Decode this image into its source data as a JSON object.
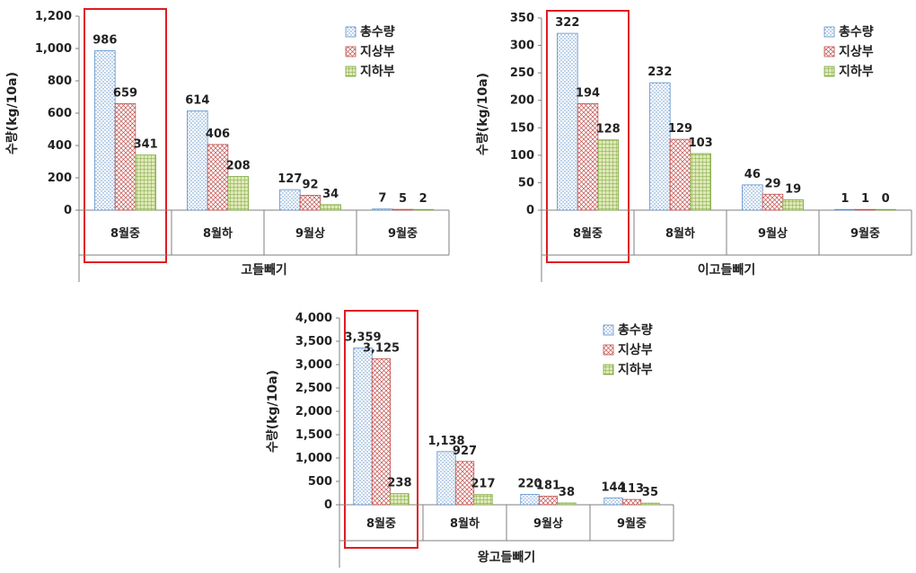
{
  "colors": {
    "total": "#5b8fc9",
    "above": "#c0504d",
    "below": "#7aa63a",
    "highlight": "#e11b22",
    "axis": "#7f7f7f"
  },
  "chart_data": [
    {
      "type": "bar",
      "title": "",
      "xlabel": "고들빼기",
      "ylabel": "수량(kg/10a)",
      "categories": [
        "8월중",
        "8월하",
        "9월상",
        "9월중"
      ],
      "ylim": [
        0,
        1200
      ],
      "yticks": [
        "0",
        "200",
        "400",
        "600",
        "800",
        "1,000",
        "1,200"
      ],
      "ytick_values": [
        0,
        200,
        400,
        600,
        800,
        1000,
        1200
      ],
      "series": [
        {
          "name": "총수량",
          "values": [
            986,
            614,
            127,
            7
          ],
          "labels": [
            "986",
            "614",
            "127",
            "7"
          ]
        },
        {
          "name": "지상부",
          "values": [
            659,
            406,
            92,
            5
          ],
          "labels": [
            "659",
            "406",
            "92",
            "5"
          ]
        },
        {
          "name": "지하부",
          "values": [
            341,
            208,
            34,
            2
          ],
          "labels": [
            "341",
            "208",
            "34",
            "2"
          ]
        }
      ],
      "legend": "top-right",
      "grid": false,
      "highlighted_category": "8월중"
    },
    {
      "type": "bar",
      "title": "",
      "xlabel": "이고들빼기",
      "ylabel": "수량(kg/10a)",
      "categories": [
        "8월중",
        "8월하",
        "9월상",
        "9월중"
      ],
      "ylim": [
        0,
        350
      ],
      "yticks": [
        "0",
        "50",
        "100",
        "150",
        "200",
        "250",
        "300",
        "350"
      ],
      "ytick_values": [
        0,
        50,
        100,
        150,
        200,
        250,
        300,
        350
      ],
      "series": [
        {
          "name": "총수량",
          "values": [
            322,
            232,
            46,
            1
          ],
          "labels": [
            "322",
            "232",
            "46",
            "1"
          ]
        },
        {
          "name": "지상부",
          "values": [
            194,
            129,
            29,
            1
          ],
          "labels": [
            "194",
            "129",
            "29",
            "1"
          ]
        },
        {
          "name": "지하부",
          "values": [
            128,
            103,
            19,
            0
          ],
          "labels": [
            "128",
            "103",
            "19",
            "0"
          ]
        }
      ],
      "legend": "top-right",
      "grid": false,
      "highlighted_category": "8월중"
    },
    {
      "type": "bar",
      "title": "",
      "xlabel": "왕고들빼기",
      "ylabel": "수량(kg/10a)",
      "categories": [
        "8월중",
        "8월하",
        "9월상",
        "9월중"
      ],
      "ylim": [
        0,
        4000
      ],
      "yticks": [
        "0",
        "500",
        "1,000",
        "1,500",
        "2,000",
        "2,500",
        "3,000",
        "3,500",
        "4,000"
      ],
      "ytick_values": [
        0,
        500,
        1000,
        1500,
        2000,
        2500,
        3000,
        3500,
        4000
      ],
      "series": [
        {
          "name": "총수량",
          "values": [
            3359,
            1138,
            220,
            144
          ],
          "labels": [
            "3,359",
            "1,138",
            "220",
            "144"
          ]
        },
        {
          "name": "지상부",
          "values": [
            3125,
            927,
            181,
            113
          ],
          "labels": [
            "3,125",
            "927",
            "181",
            "113"
          ]
        },
        {
          "name": "지하부",
          "values": [
            238,
            217,
            38,
            35
          ],
          "labels": [
            "238",
            "217",
            "38",
            "35"
          ]
        }
      ],
      "legend": "top-right",
      "grid": false,
      "highlighted_category": "8월중"
    }
  ]
}
